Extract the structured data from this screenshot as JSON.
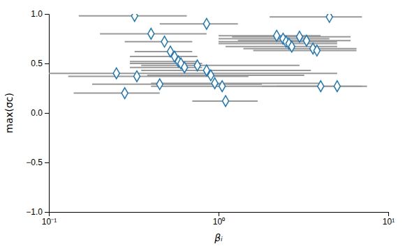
{
  "chart_data": {
    "type": "scatter",
    "xlabel": "βᵢ",
    "ylabel": "max(σc)",
    "log": "x",
    "marker": "diamond",
    "x": [
      0.32,
      0.4,
      0.48,
      0.52,
      0.55,
      0.58,
      0.6,
      0.63,
      0.25,
      0.33,
      0.45,
      0.28,
      0.75,
      0.85,
      0.9,
      0.95,
      1.05,
      0.85,
      1.1,
      2.2,
      2.4,
      2.5,
      2.6,
      2.7,
      3.0,
      3.3,
      3.6,
      3.8,
      4.0,
      4.5,
      5.0
    ],
    "values": [
      0.98,
      0.8,
      0.72,
      0.62,
      0.57,
      0.52,
      0.5,
      0.46,
      0.4,
      0.37,
      0.29,
      0.2,
      0.48,
      0.43,
      0.38,
      0.3,
      0.27,
      0.9,
      0.12,
      0.78,
      0.75,
      0.72,
      0.7,
      0.67,
      0.77,
      0.73,
      0.65,
      0.63,
      0.27,
      0.97,
      0.27
    ],
    "x_low": [
      0.15,
      0.2,
      0.28,
      0.32,
      0.3,
      0.3,
      0.3,
      0.3,
      0.1,
      0.13,
      0.18,
      0.14,
      0.35,
      0.35,
      0.38,
      0.4,
      0.4,
      0.45,
      0.7,
      1.0,
      1.0,
      1.0,
      1.0,
      1.1,
      1.2,
      1.3,
      1.4,
      1.6,
      1.8,
      2.0,
      2.2
    ],
    "x_high": [
      0.65,
      0.85,
      0.7,
      0.7,
      0.75,
      0.75,
      0.8,
      0.8,
      5.0,
      1.5,
      1.8,
      0.45,
      3.0,
      3.5,
      3.2,
      4.0,
      4.0,
      1.3,
      1.7,
      4.0,
      4.5,
      5.0,
      5.0,
      5.0,
      6.0,
      6.0,
      6.5,
      6.5,
      7.0,
      7.0,
      7.5
    ],
    "xlim": [
      0.1,
      10
    ],
    "xticks": [
      {
        "value": 0.1,
        "label": "10⁻¹"
      },
      {
        "value": 1,
        "label": "10⁰"
      },
      {
        "value": 10,
        "label": "10¹"
      }
    ],
    "ylim": [
      -1.0,
      1.0
    ],
    "yticks": [
      {
        "value": -1.0,
        "label": "−1.0"
      },
      {
        "value": -0.5,
        "label": "−0.5"
      },
      {
        "value": 0.0,
        "label": "0.0"
      },
      {
        "value": 0.5,
        "label": "0.5"
      },
      {
        "value": 1.0,
        "label": "1.0"
      }
    ]
  }
}
